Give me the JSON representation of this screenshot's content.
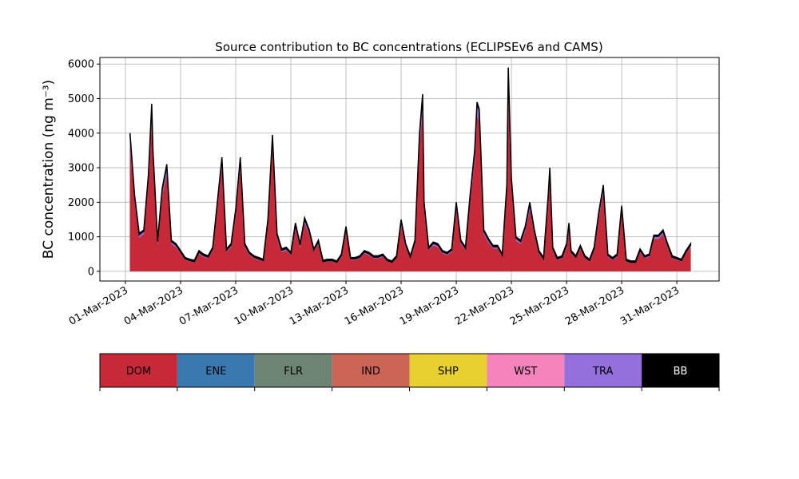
{
  "chart_data": {
    "type": "stacked_area",
    "title": "Source contribution to BC concentrations (ECLIPSEv6 and CAMS)",
    "ylabel": "BC concentration (ng m⁻³)",
    "x": [
      1.25,
      1.5,
      1.75,
      2,
      2.25,
      2.43,
      2.5,
      2.75,
      3,
      3.25,
      3.5,
      3.75,
      4,
      4.25,
      4.5,
      4.75,
      5,
      5.25,
      5.5,
      5.75,
      6,
      6.25,
      6.5,
      6.75,
      7,
      7.25,
      7.5,
      7.75,
      8,
      8.25,
      8.5,
      8.75,
      9,
      9.25,
      9.5,
      9.75,
      10,
      10.25,
      10.5,
      10.75,
      11,
      11.25,
      11.5,
      11.75,
      12,
      12.25,
      12.5,
      12.75,
      13,
      13.25,
      13.5,
      13.75,
      14,
      14.25,
      14.5,
      14.75,
      15,
      15.25,
      15.5,
      15.75,
      16,
      16.25,
      16.5,
      16.75,
      17,
      17.17,
      17.25,
      17.5,
      17.75,
      18,
      18.25,
      18.5,
      18.75,
      19,
      19.25,
      19.5,
      19.75,
      20,
      20.13,
      20.25,
      20.5,
      20.75,
      21,
      21.25,
      21.5,
      21.75,
      21.83,
      22,
      22.25,
      22.5,
      22.75,
      23,
      23.25,
      23.5,
      23.75,
      24,
      24.09,
      24.25,
      24.5,
      24.75,
      25,
      25.13,
      25.25,
      25.5,
      25.75,
      26,
      26.25,
      26.5,
      26.75,
      27,
      27.25,
      27.5,
      27.75,
      28,
      28.25,
      28.5,
      28.75,
      29,
      29.25,
      29.5,
      29.75,
      30,
      30.25,
      30.5,
      30.75,
      31,
      31.25,
      31.5,
      31.75
    ],
    "series": [
      {
        "name": "DOM",
        "color": "#c62a39",
        "values": [
          3680,
          2010,
          980,
          1080,
          2560,
          4470,
          3210,
          800,
          2190,
          2840,
          800,
          700,
          520,
          330,
          290,
          260,
          520,
          420,
          380,
          610,
          1820,
          3030,
          560,
          700,
          1630,
          3030,
          700,
          470,
          380,
          330,
          290,
          1350,
          3630,
          980,
          560,
          610,
          470,
          1260,
          700,
          1400,
          1080,
          560,
          800,
          260,
          290,
          290,
          240,
          420,
          1170,
          330,
          330,
          380,
          520,
          470,
          380,
          380,
          420,
          290,
          240,
          380,
          1350,
          700,
          380,
          800,
          3680,
          4730,
          1820,
          610,
          750,
          700,
          520,
          470,
          560,
          1820,
          800,
          610,
          2010,
          3210,
          4520,
          4330,
          1080,
          840,
          660,
          660,
          420,
          2280,
          5450,
          2470,
          890,
          800,
          1170,
          1820,
          1080,
          520,
          330,
          2010,
          2750,
          610,
          330,
          380,
          700,
          1260,
          520,
          380,
          660,
          380,
          290,
          610,
          1540,
          2280,
          420,
          330,
          420,
          1730,
          290,
          240,
          240,
          560,
          380,
          420,
          940,
          940,
          1080,
          700,
          380,
          330,
          290,
          520,
          700
        ]
      },
      {
        "name": "TRA",
        "color": "#9370db",
        "values": [
          280,
          150,
          80,
          80,
          200,
          340,
          250,
          60,
          170,
          220,
          60,
          60,
          40,
          30,
          20,
          20,
          40,
          40,
          30,
          50,
          140,
          230,
          50,
          60,
          130,
          230,
          60,
          40,
          30,
          30,
          20,
          110,
          280,
          80,
          50,
          50,
          40,
          100,
          60,
          110,
          80,
          50,
          60,
          20,
          20,
          20,
          20,
          40,
          90,
          30,
          30,
          30,
          40,
          40,
          30,
          30,
          40,
          20,
          20,
          30,
          110,
          60,
          30,
          60,
          280,
          360,
          140,
          50,
          60,
          60,
          40,
          40,
          50,
          140,
          60,
          50,
          150,
          250,
          340,
          330,
          80,
          70,
          50,
          50,
          40,
          180,
          410,
          190,
          70,
          60,
          90,
          140,
          80,
          40,
          30,
          150,
          210,
          50,
          30,
          30,
          60,
          100,
          40,
          30,
          50,
          30,
          20,
          50,
          120,
          180,
          40,
          30,
          40,
          130,
          20,
          20,
          20,
          50,
          30,
          40,
          70,
          70,
          80,
          60,
          30,
          30,
          20,
          40,
          60
        ]
      },
      {
        "name": "BB",
        "color": "#000000",
        "values": [
          40,
          40,
          40,
          40,
          40,
          40,
          40,
          40,
          40,
          40,
          40,
          40,
          40,
          40,
          40,
          40,
          40,
          40,
          40,
          40,
          40,
          40,
          40,
          40,
          40,
          40,
          40,
          40,
          40,
          40,
          40,
          40,
          40,
          40,
          40,
          40,
          40,
          40,
          40,
          40,
          40,
          40,
          40,
          40,
          40,
          40,
          40,
          40,
          40,
          40,
          40,
          40,
          40,
          40,
          40,
          40,
          40,
          40,
          40,
          40,
          40,
          40,
          40,
          40,
          40,
          40,
          40,
          40,
          40,
          40,
          40,
          40,
          40,
          40,
          40,
          40,
          40,
          40,
          40,
          40,
          40,
          40,
          40,
          40,
          40,
          40,
          40,
          40,
          40,
          40,
          40,
          40,
          40,
          40,
          40,
          40,
          40,
          40,
          40,
          40,
          40,
          40,
          40,
          40,
          40,
          40,
          40,
          40,
          40,
          40,
          40,
          40,
          40,
          40,
          40,
          40,
          40,
          40,
          40,
          40,
          40,
          40,
          40,
          40,
          40,
          40,
          40,
          40,
          40
        ]
      }
    ],
    "xlim": [
      -0.39,
      33.3
    ],
    "xticks": [
      {
        "value": 1,
        "label": "01-Mar-2023"
      },
      {
        "value": 4,
        "label": "04-Mar-2023"
      },
      {
        "value": 7,
        "label": "07-Mar-2023"
      },
      {
        "value": 10,
        "label": "10-Mar-2023"
      },
      {
        "value": 13,
        "label": "13-Mar-2023"
      },
      {
        "value": 16,
        "label": "16-Mar-2023"
      },
      {
        "value": 19,
        "label": "19-Mar-2023"
      },
      {
        "value": 22,
        "label": "22-Mar-2023"
      },
      {
        "value": 25,
        "label": "25-Mar-2023"
      },
      {
        "value": 28,
        "label": "28-Mar-2023"
      },
      {
        "value": 31,
        "label": "31-Mar-2023"
      }
    ],
    "ylim": [
      -280,
      6190
    ],
    "yticks": [
      0,
      1000,
      2000,
      3000,
      4000,
      5000,
      6000
    ],
    "grid": true,
    "colorbar": {
      "labels": [
        "DOM",
        "ENE",
        "FLR",
        "IND",
        "SHP",
        "WST",
        "TRA",
        "BB"
      ],
      "colors": [
        "#c62a39",
        "#3a79b0",
        "#6d8373",
        "#cb6656",
        "#e8d030",
        "#f484bb",
        "#9370db",
        "#000000"
      ]
    }
  }
}
